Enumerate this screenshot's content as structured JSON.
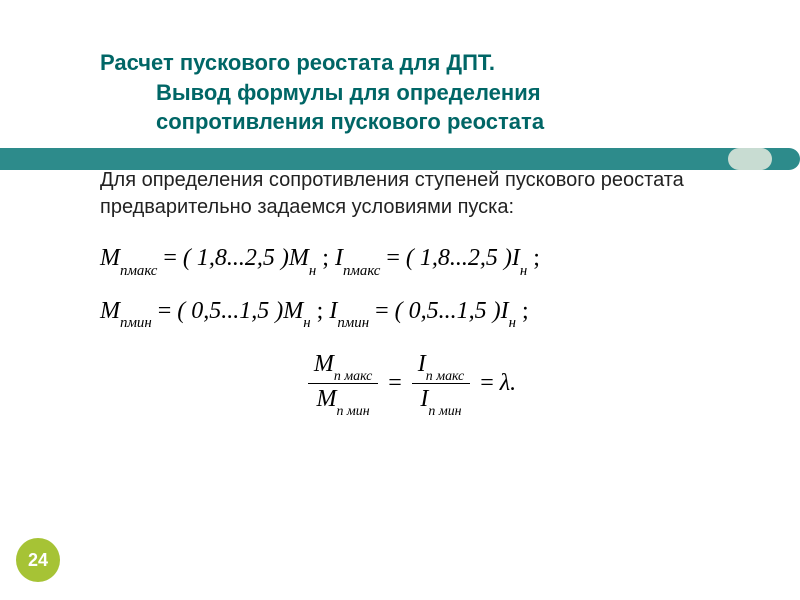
{
  "title": {
    "line1": "Расчет пускового реостата для ДПТ.",
    "line2": "Вывод формулы для определения",
    "line3": "сопротивления пускового реостата"
  },
  "paragraph": "Для определения сопротивления ступеней пускового реостата предварительно задаемся условиями пуска:",
  "formulas": {
    "f1": {
      "M_sub": "пмакс",
      "coef": "( 1,8...2,5 )",
      "Mn_sub": "н",
      "I_sub": "пмакс",
      "In_sub": "н"
    },
    "f2": {
      "M_sub": "пмин",
      "coef": "( 0,5...1,5 )",
      "Mn_sub": "н",
      "I_sub": "пмин",
      "In_sub": "н"
    },
    "ratio": {
      "num_M": "п макс",
      "den_M": "п мин",
      "num_I": "п макс",
      "den_I": "п мин",
      "lambda": "λ."
    }
  },
  "page": "24",
  "colors": {
    "title": "#006666",
    "bar": "#2d8b8b",
    "bar_end": "#c8dcd2",
    "page_badge": "#a6c335"
  }
}
